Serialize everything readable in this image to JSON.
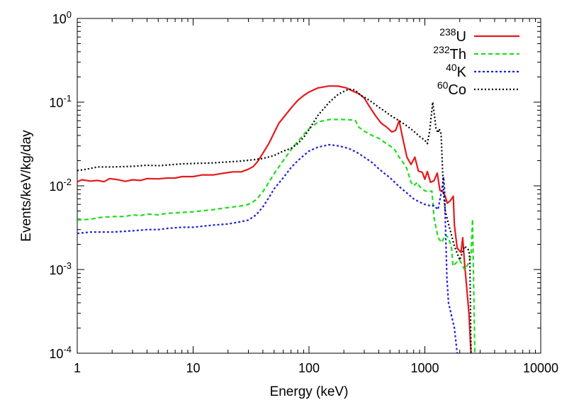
{
  "chart_data": {
    "type": "line",
    "xlabel": "Energy (keV)",
    "ylabel": "Events/keV/kg/day",
    "xscale": "log",
    "yscale": "log",
    "xlim": [
      1,
      10000
    ],
    "ylim": [
      0.0001,
      1
    ],
    "grid": false,
    "legend_position": "top-right",
    "x_ticks": [
      {
        "value": 1,
        "label": "1"
      },
      {
        "value": 10,
        "label": "10"
      },
      {
        "value": 100,
        "label": "100"
      },
      {
        "value": 1000,
        "label": "1000"
      },
      {
        "value": 10000,
        "label": "10000"
      }
    ],
    "y_ticks": [
      {
        "value": 0.0001,
        "base": "10",
        "exp": "-4"
      },
      {
        "value": 0.001,
        "base": "10",
        "exp": "-3"
      },
      {
        "value": 0.01,
        "base": "10",
        "exp": "-2"
      },
      {
        "value": 0.1,
        "base": "10",
        "exp": "-1"
      },
      {
        "value": 1,
        "base": "10",
        "exp": "0"
      }
    ],
    "series": [
      {
        "name": "238U",
        "legend_sup": "238",
        "legend_base": "U",
        "color": "#e41a1c",
        "dash": "solid",
        "points": [
          [
            1,
            0.0112
          ],
          [
            1.1,
            0.0118
          ],
          [
            1.3,
            0.0114
          ],
          [
            1.5,
            0.0116
          ],
          [
            1.7,
            0.0112
          ],
          [
            1.9,
            0.0122
          ],
          [
            2.2,
            0.0119
          ],
          [
            2.6,
            0.0113
          ],
          [
            3,
            0.0118
          ],
          [
            3.5,
            0.0116
          ],
          [
            4,
            0.0122
          ],
          [
            5,
            0.0121
          ],
          [
            6,
            0.0124
          ],
          [
            7,
            0.0124
          ],
          [
            8,
            0.0129
          ],
          [
            10,
            0.0129
          ],
          [
            12,
            0.0135
          ],
          [
            15,
            0.0135
          ],
          [
            18,
            0.0141
          ],
          [
            22,
            0.0147
          ],
          [
            26,
            0.0147
          ],
          [
            30,
            0.0158
          ],
          [
            33,
            0.017
          ],
          [
            36,
            0.0195
          ],
          [
            40,
            0.0245
          ],
          [
            45,
            0.032
          ],
          [
            50,
            0.043
          ],
          [
            55,
            0.056
          ],
          [
            60,
            0.065
          ],
          [
            70,
            0.085
          ],
          [
            80,
            0.105
          ],
          [
            90,
            0.12
          ],
          [
            100,
            0.132
          ],
          [
            120,
            0.148
          ],
          [
            150,
            0.156
          ],
          [
            180,
            0.155
          ],
          [
            210,
            0.148
          ],
          [
            240,
            0.135
          ],
          [
            270,
            0.126
          ],
          [
            300,
            0.112
          ],
          [
            330,
            0.09
          ],
          [
            380,
            0.067
          ],
          [
            420,
            0.056
          ],
          [
            470,
            0.05
          ],
          [
            520,
            0.044
          ],
          [
            560,
            0.046
          ],
          [
            600,
            0.06
          ],
          [
            650,
            0.035
          ],
          [
            700,
            0.022
          ],
          [
            760,
            0.018
          ],
          [
            820,
            0.022
          ],
          [
            880,
            0.015
          ],
          [
            950,
            0.0145
          ],
          [
            1000,
            0.012
          ],
          [
            1050,
            0.0148
          ],
          [
            1120,
            0.011
          ],
          [
            1200,
            0.0115
          ],
          [
            1280,
            0.0142
          ],
          [
            1350,
            0.0088
          ],
          [
            1420,
            0.0086
          ],
          [
            1500,
            0.0075
          ],
          [
            1560,
            0.0062
          ],
          [
            1650,
            0.0066
          ],
          [
            1760,
            0.0075
          ],
          [
            1800,
            0.0034
          ],
          [
            1900,
            0.0018
          ],
          [
            2050,
            0.0016
          ],
          [
            2120,
            0.0024
          ],
          [
            2200,
            0.0012
          ],
          [
            2400,
            0.0003
          ],
          [
            2500,
            0.0001
          ]
        ]
      },
      {
        "name": "232Th",
        "legend_sup": "232",
        "legend_base": "Th",
        "color": "#1fdd1f",
        "dash": "6,4",
        "points": [
          [
            1,
            0.0039
          ],
          [
            1.3,
            0.004
          ],
          [
            1.6,
            0.0042
          ],
          [
            2,
            0.0043
          ],
          [
            2.6,
            0.0043
          ],
          [
            3,
            0.0045
          ],
          [
            3.5,
            0.0044
          ],
          [
            4,
            0.0046
          ],
          [
            5,
            0.0045
          ],
          [
            6,
            0.0047
          ],
          [
            8,
            0.0048
          ],
          [
            10,
            0.0049
          ],
          [
            15,
            0.0052
          ],
          [
            20,
            0.0055
          ],
          [
            25,
            0.0057
          ],
          [
            30,
            0.006
          ],
          [
            35,
            0.0068
          ],
          [
            40,
            0.0085
          ],
          [
            45,
            0.011
          ],
          [
            50,
            0.014
          ],
          [
            60,
            0.02
          ],
          [
            70,
            0.027
          ],
          [
            80,
            0.034
          ],
          [
            90,
            0.041
          ],
          [
            100,
            0.048
          ],
          [
            120,
            0.058
          ],
          [
            150,
            0.062
          ],
          [
            200,
            0.062
          ],
          [
            250,
            0.061
          ],
          [
            270,
            0.05
          ],
          [
            300,
            0.045
          ],
          [
            350,
            0.04
          ],
          [
            400,
            0.037
          ],
          [
            450,
            0.033
          ],
          [
            500,
            0.03
          ],
          [
            550,
            0.027
          ],
          [
            600,
            0.022
          ],
          [
            650,
            0.019
          ],
          [
            700,
            0.016
          ],
          [
            760,
            0.011
          ],
          [
            800,
            0.01
          ],
          [
            860,
            0.011
          ],
          [
            900,
            0.0098
          ],
          [
            1000,
            0.0087
          ],
          [
            1100,
            0.0085
          ],
          [
            1150,
            0.0087
          ],
          [
            1200,
            0.0042
          ],
          [
            1300,
            0.0024
          ],
          [
            1400,
            0.0021
          ],
          [
            1500,
            0.0026
          ],
          [
            1600,
            0.0024
          ],
          [
            1700,
            0.0018
          ],
          [
            1750,
            0.0011
          ],
          [
            1850,
            0.0012
          ],
          [
            2000,
            0.0013
          ],
          [
            2200,
            0.001
          ],
          [
            2400,
            0.0012
          ],
          [
            2500,
            0.0015
          ],
          [
            2580,
            0.004
          ],
          [
            2620,
            0.0011
          ],
          [
            2700,
            0.0001
          ]
        ]
      },
      {
        "name": "40K",
        "legend_sup": "40",
        "legend_base": "K",
        "color": "#1f1fdd",
        "dash": "3,3",
        "points": [
          [
            1,
            0.0027
          ],
          [
            1.3,
            0.0028
          ],
          [
            1.6,
            0.0028
          ],
          [
            2,
            0.0028
          ],
          [
            3,
            0.0029
          ],
          [
            4,
            0.003
          ],
          [
            5,
            0.003
          ],
          [
            6,
            0.0031
          ],
          [
            8,
            0.0032
          ],
          [
            10,
            0.0032
          ],
          [
            15,
            0.0034
          ],
          [
            20,
            0.0035
          ],
          [
            25,
            0.0037
          ],
          [
            30,
            0.0039
          ],
          [
            35,
            0.0045
          ],
          [
            40,
            0.0056
          ],
          [
            45,
            0.0072
          ],
          [
            50,
            0.0092
          ],
          [
            60,
            0.0125
          ],
          [
            70,
            0.0165
          ],
          [
            80,
            0.02
          ],
          [
            90,
            0.023
          ],
          [
            100,
            0.026
          ],
          [
            120,
            0.029
          ],
          [
            150,
            0.031
          ],
          [
            180,
            0.03
          ],
          [
            220,
            0.028
          ],
          [
            260,
            0.025
          ],
          [
            300,
            0.022
          ],
          [
            350,
            0.019
          ],
          [
            400,
            0.016
          ],
          [
            450,
            0.014
          ],
          [
            500,
            0.0125
          ],
          [
            550,
            0.011
          ],
          [
            600,
            0.0098
          ],
          [
            700,
            0.0082
          ],
          [
            800,
            0.007
          ],
          [
            900,
            0.0064
          ],
          [
            1000,
            0.006
          ],
          [
            1100,
            0.0058
          ],
          [
            1200,
            0.0058
          ],
          [
            1300,
            0.0052
          ],
          [
            1400,
            0.009
          ],
          [
            1450,
            0.0128
          ],
          [
            1480,
            0.009
          ],
          [
            1500,
            0.004
          ],
          [
            1550,
            0.0008
          ],
          [
            1600,
            0.0004
          ],
          [
            1800,
            0.0002
          ],
          [
            1900,
            0.0001
          ]
        ]
      },
      {
        "name": "60Co",
        "legend_sup": "60",
        "legend_base": "Co",
        "color": "#000000",
        "dash": "2,3",
        "points": [
          [
            1,
            0.0152
          ],
          [
            1.2,
            0.0158
          ],
          [
            1.5,
            0.0168
          ],
          [
            2,
            0.0168
          ],
          [
            3,
            0.0171
          ],
          [
            4,
            0.0176
          ],
          [
            5,
            0.0174
          ],
          [
            6,
            0.0177
          ],
          [
            8,
            0.0183
          ],
          [
            10,
            0.0185
          ],
          [
            15,
            0.0188
          ],
          [
            20,
            0.0193
          ],
          [
            25,
            0.0197
          ],
          [
            30,
            0.0202
          ],
          [
            35,
            0.0207
          ],
          [
            40,
            0.0212
          ],
          [
            50,
            0.023
          ],
          [
            60,
            0.026
          ],
          [
            70,
            0.028
          ],
          [
            80,
            0.032
          ],
          [
            90,
            0.038
          ],
          [
            100,
            0.047
          ],
          [
            120,
            0.07
          ],
          [
            150,
            0.1
          ],
          [
            180,
            0.125
          ],
          [
            220,
            0.143
          ],
          [
            250,
            0.14
          ],
          [
            280,
            0.12
          ],
          [
            300,
            0.115
          ],
          [
            350,
            0.1
          ],
          [
            400,
            0.087
          ],
          [
            450,
            0.078
          ],
          [
            500,
            0.07
          ],
          [
            600,
            0.06
          ],
          [
            700,
            0.052
          ],
          [
            800,
            0.045
          ],
          [
            900,
            0.039
          ],
          [
            1000,
            0.035
          ],
          [
            1050,
            0.032
          ],
          [
            1100,
            0.045
          ],
          [
            1170,
            0.1
          ],
          [
            1250,
            0.048
          ],
          [
            1300,
            0.043
          ],
          [
            1330,
            0.048
          ],
          [
            1380,
            0.042
          ],
          [
            1450,
            0.008
          ],
          [
            1500,
            0.005
          ],
          [
            1600,
            0.0035
          ],
          [
            1800,
            0.0019
          ],
          [
            2000,
            0.0013
          ],
          [
            2200,
            0.0019
          ],
          [
            2400,
            0.0017
          ],
          [
            2450,
            0.0012
          ],
          [
            2500,
            0.0001
          ]
        ]
      }
    ]
  }
}
